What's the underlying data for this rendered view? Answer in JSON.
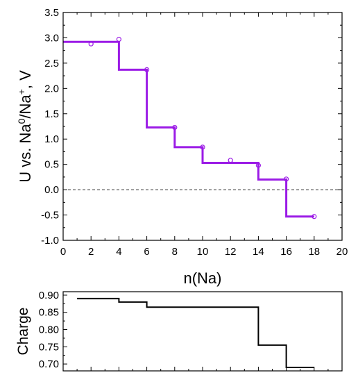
{
  "chart_data": [
    {
      "type": "line",
      "xlabel": "n(Na)",
      "ylabel": "U vs. Na0/Na+, V",
      "ylabel_parts": {
        "a": "U vs. Na",
        "sup1": "0",
        "b": "/Na",
        "sup2": "+",
        "c": ", V"
      },
      "xlim": [
        0,
        20
      ],
      "ylim": [
        -1.0,
        3.5
      ],
      "xticks": [
        "0",
        "2",
        "4",
        "6",
        "8",
        "10",
        "12",
        "14",
        "16",
        "18",
        "20"
      ],
      "yticks": [
        "-1.0",
        "-0.5",
        "0.0",
        "0.5",
        "1.0",
        "1.5",
        "2.0",
        "2.5",
        "3.0",
        "3.5"
      ],
      "series_color": "#9b1be6",
      "reference_line": {
        "y": 0.0,
        "style": "dashed"
      },
      "step_line": {
        "x": [
          0,
          4,
          4,
          6,
          6,
          8,
          8,
          10,
          10,
          14,
          14,
          16,
          16,
          18
        ],
        "y": [
          2.92,
          2.92,
          2.37,
          2.37,
          1.23,
          1.23,
          0.84,
          0.84,
          0.53,
          0.53,
          0.2,
          0.2,
          -0.53,
          -0.53
        ]
      },
      "points": {
        "x": [
          2,
          4,
          6,
          8,
          10,
          12,
          14,
          16,
          18
        ],
        "y": [
          2.88,
          2.97,
          2.37,
          1.23,
          0.84,
          0.58,
          0.48,
          0.21,
          -0.53
        ]
      }
    },
    {
      "type": "line",
      "ylabel": "Charge",
      "xlim": [
        0,
        20
      ],
      "ylim": [
        0.68,
        0.91
      ],
      "yticks": [
        "0.70",
        "0.75",
        "0.80",
        "0.85",
        "0.90"
      ],
      "step_line": {
        "x": [
          1,
          4,
          4,
          6,
          6,
          14,
          14,
          16,
          16,
          18
        ],
        "y": [
          0.89,
          0.89,
          0.88,
          0.88,
          0.865,
          0.865,
          0.755,
          0.755,
          0.69,
          0.69
        ]
      }
    }
  ]
}
